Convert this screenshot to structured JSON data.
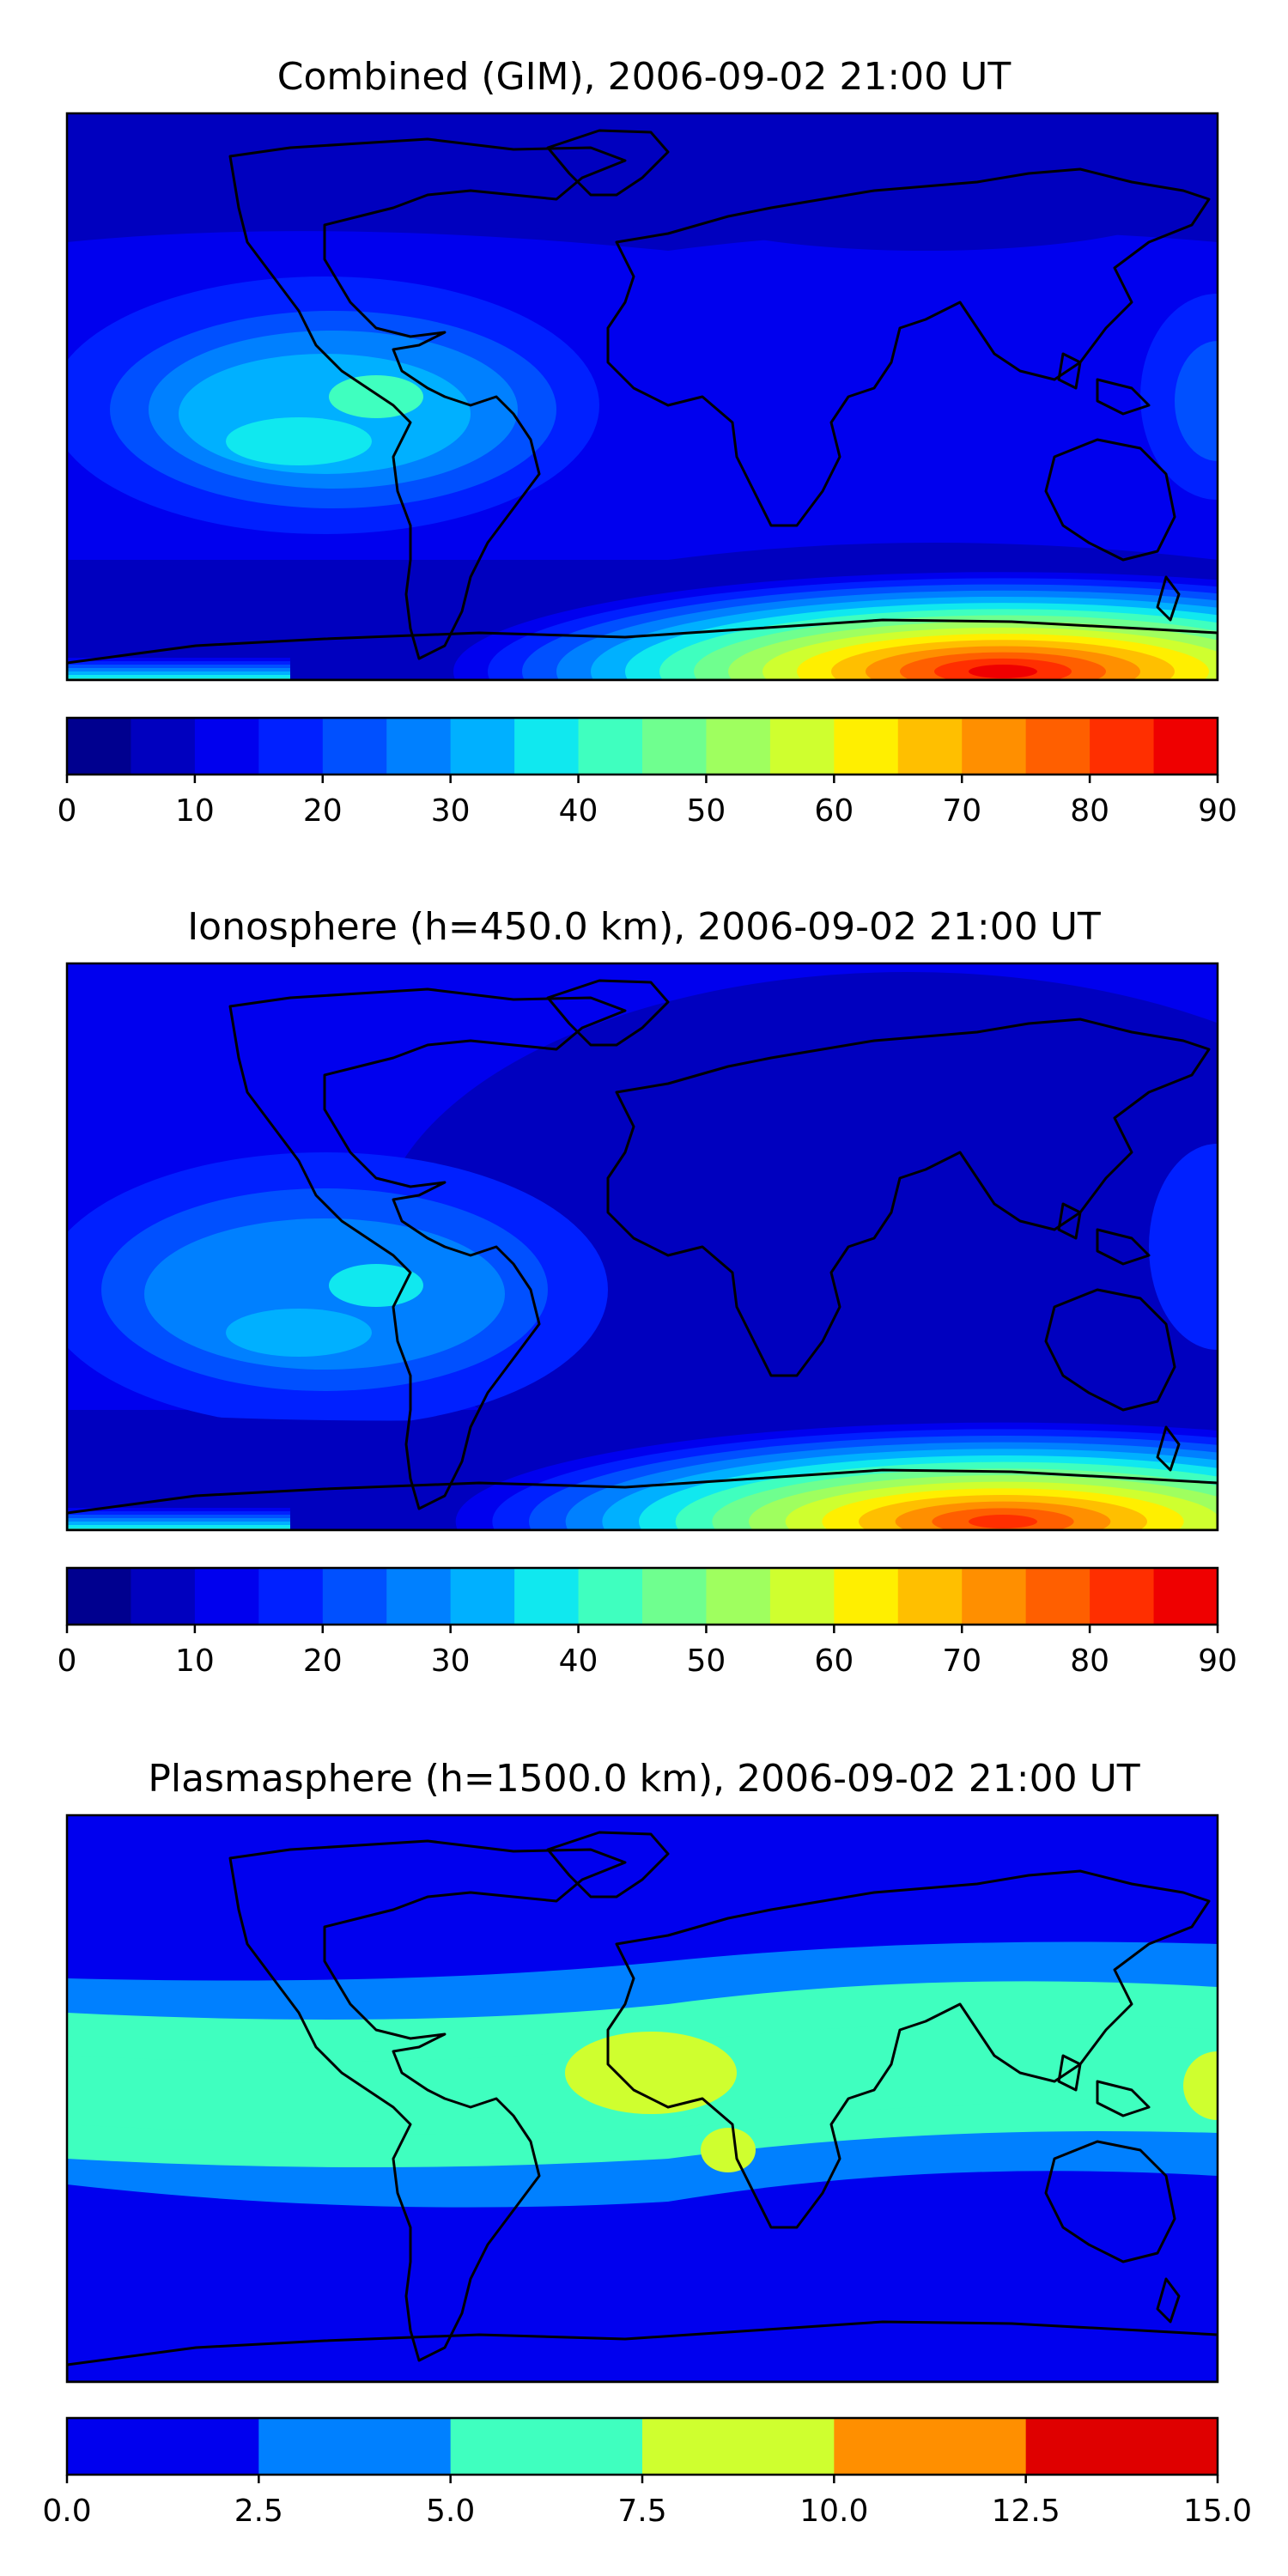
{
  "charts": [
    {
      "type": "heatmap",
      "title": "Combined (GIM), 2006-09-02 21:00 UT",
      "colorbar": {
        "ticks": [
          "0",
          "10",
          "20",
          "30",
          "40",
          "50",
          "60",
          "70",
          "80",
          "90"
        ],
        "min": 0,
        "max": 90,
        "levels": 18,
        "colors": [
          "#00008f",
          "#0000bf",
          "#0000ee",
          "#0020ff",
          "#0050ff",
          "#0080ff",
          "#00b0ff",
          "#10e8ef",
          "#3fffbf",
          "#6fff8f",
          "#9fff5f",
          "#cfff2f",
          "#ffef00",
          "#ffbf00",
          "#ff8f00",
          "#ff5f00",
          "#ff2f00",
          "#ef0000",
          "#af0000"
        ]
      },
      "features": [
        {
          "label": "equatorial-anomaly-pacific",
          "level": 7
        },
        {
          "label": "equatorial-anomaly-core",
          "level": 8
        },
        {
          "label": "southern-polar-peak",
          "level": 17
        }
      ]
    },
    {
      "type": "heatmap",
      "title": "Ionosphere  (h=450.0 km), 2006-09-02 21:00 UT",
      "colorbar": {
        "ticks": [
          "0",
          "10",
          "20",
          "30",
          "40",
          "50",
          "60",
          "70",
          "80",
          "90"
        ],
        "min": 0,
        "max": 90,
        "levels": 18,
        "colors": [
          "#00008f",
          "#0000bf",
          "#0000ee",
          "#0020ff",
          "#0050ff",
          "#0080ff",
          "#00b0ff",
          "#10e8ef",
          "#3fffbf",
          "#6fff8f",
          "#9fff5f",
          "#cfff2f",
          "#ffef00",
          "#ffbf00",
          "#ff8f00",
          "#ff5f00",
          "#ff2f00",
          "#ef0000",
          "#af0000"
        ]
      },
      "features": [
        {
          "label": "equatorial-anomaly-pacific",
          "level": 6
        },
        {
          "label": "equatorial-anomaly-core",
          "level": 7
        },
        {
          "label": "southern-polar-peak",
          "level": 16
        }
      ]
    },
    {
      "type": "heatmap",
      "title": "Plasmasphere (h=1500.0 km), 2006-09-02 21:00 UT",
      "colorbar": {
        "ticks": [
          "0.0",
          "2.5",
          "5.0",
          "7.5",
          "10.0",
          "12.5",
          "15.0"
        ],
        "min": 0,
        "max": 15,
        "levels": 6,
        "colors": [
          "#0000ee",
          "#0080ff",
          "#3fffbf",
          "#cfff2f",
          "#ff8f00",
          "#df0000"
        ]
      },
      "features": [
        {
          "label": "tropical-band",
          "level": 2
        },
        {
          "label": "atlantic-maximum",
          "level": 3
        }
      ]
    }
  ]
}
